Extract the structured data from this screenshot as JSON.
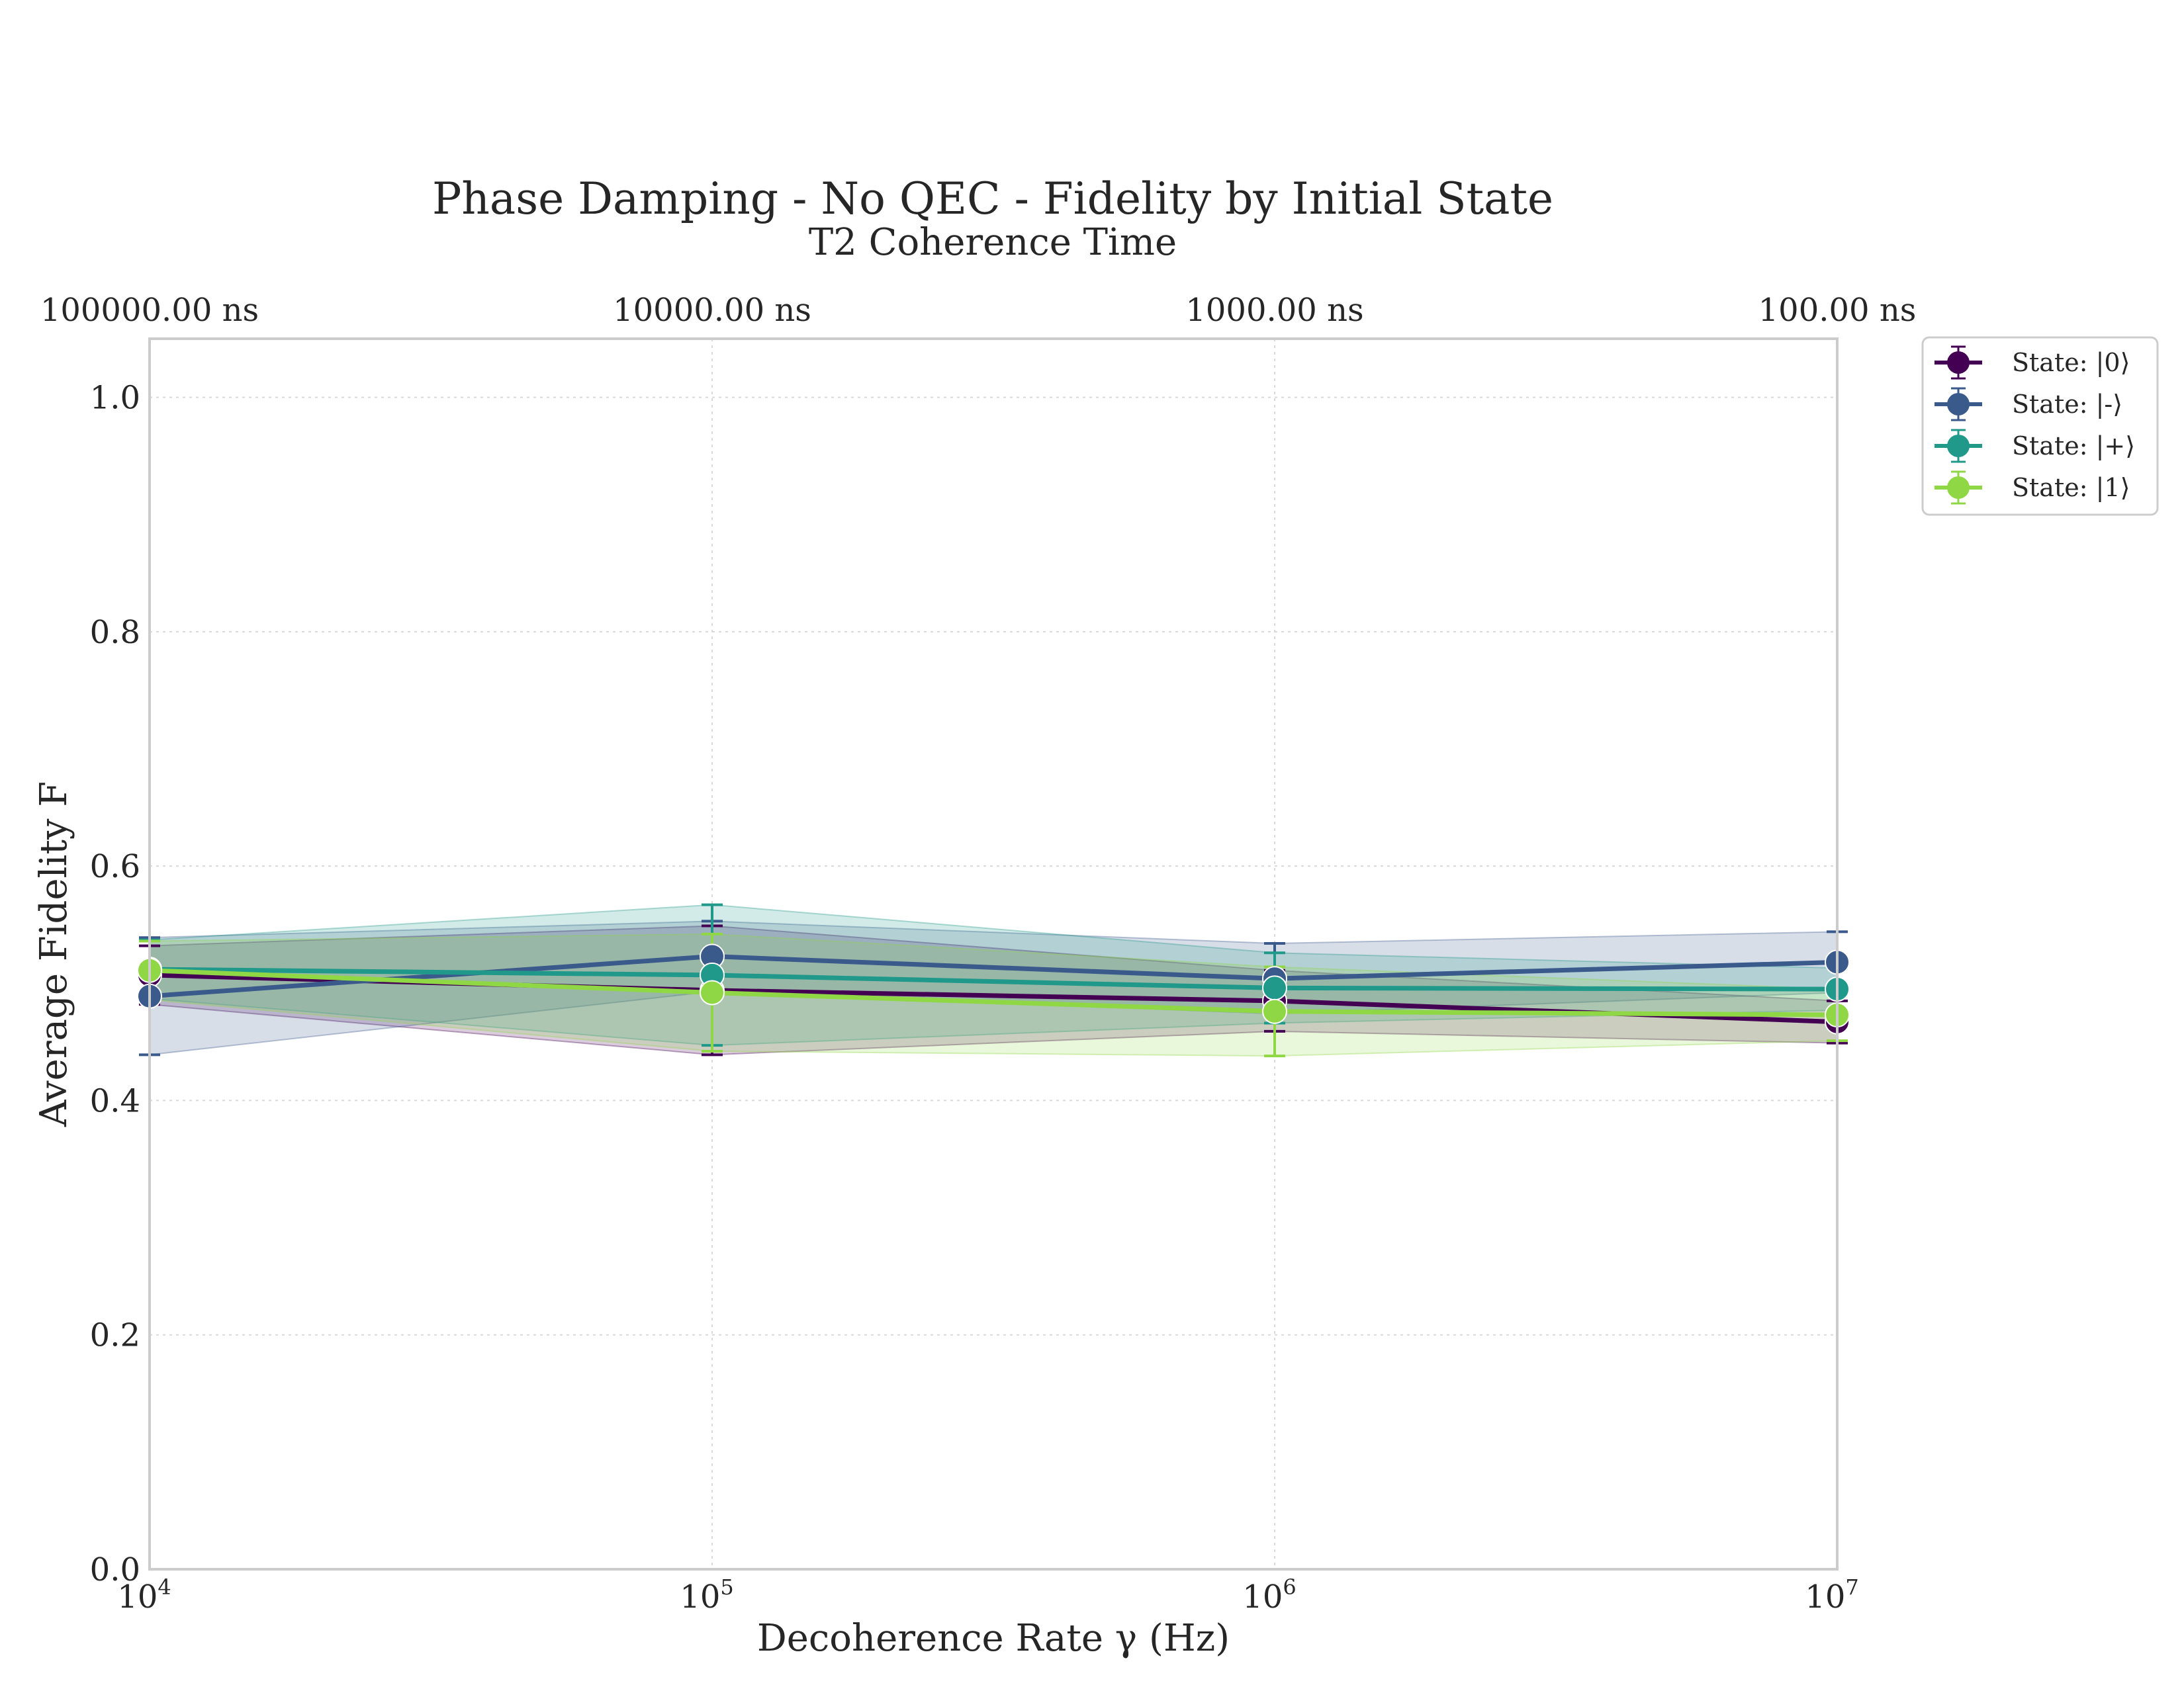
{
  "chart_data": {
    "type": "line",
    "title": "Phase Damping - No QEC - Fidelity by Initial State",
    "subtitle": "T2 Coherence Time",
    "xlabel": "Decoherence Rate γ (Hz)",
    "ylabel": "Average Fidelity F",
    "x_scale": "log",
    "xlim": [
      10000,
      10000000
    ],
    "ylim": [
      0.0,
      1.05
    ],
    "x": [
      10000,
      100000,
      1000000,
      10000000
    ],
    "x_tick_labels": [
      {
        "base": "10",
        "exp": "4"
      },
      {
        "base": "10",
        "exp": "5"
      },
      {
        "base": "10",
        "exp": "6"
      },
      {
        "base": "10",
        "exp": "7"
      }
    ],
    "top_axis_tick_labels": [
      "100000.00 ns",
      "10000.00 ns",
      "1000.00 ns",
      "100.00 ns"
    ],
    "y_ticks": [
      0.0,
      0.2,
      0.4,
      0.6,
      0.8,
      1.0
    ],
    "y_tick_labels": [
      "0.0",
      "0.2",
      "0.4",
      "0.6",
      "0.8",
      "1.0"
    ],
    "grid": true,
    "legend_position": "outside-top-right",
    "series": [
      {
        "name": "State: |0⟩",
        "color": "#440154",
        "values": [
          0.507,
          0.494,
          0.485,
          0.467
        ],
        "error": [
          0.025,
          0.055,
          0.026,
          0.018
        ]
      },
      {
        "name": "State: |-⟩",
        "color": "#3b5a8c",
        "values": [
          0.489,
          0.523,
          0.504,
          0.518
        ],
        "error": [
          0.05,
          0.03,
          0.03,
          0.026
        ]
      },
      {
        "name": "State: |+⟩",
        "color": "#21998a",
        "values": [
          0.512,
          0.507,
          0.496,
          0.495
        ],
        "error": [
          0.025,
          0.06,
          0.03,
          0.018
        ]
      },
      {
        "name": "State: |1⟩",
        "color": "#8fd744",
        "values": [
          0.511,
          0.492,
          0.476,
          0.473
        ],
        "error": [
          0.025,
          0.05,
          0.038,
          0.022
        ]
      }
    ]
  }
}
